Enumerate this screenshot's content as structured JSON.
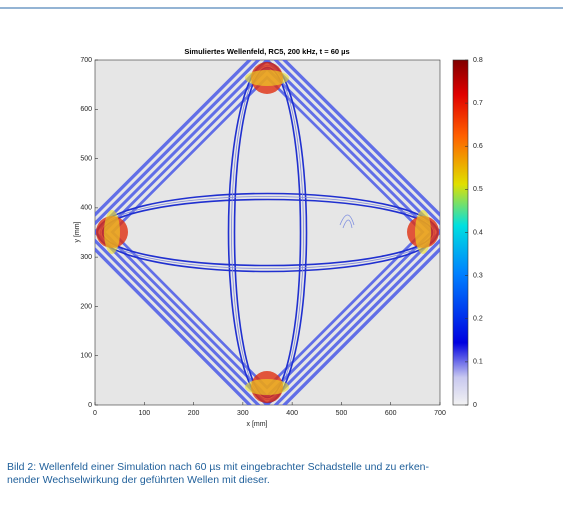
{
  "figure": {
    "title": "Simuliertes Wellenfeld, RC5, 200 kHz, t = 60 µs",
    "xlabel": "x [mm]",
    "ylabel": "y [mm]",
    "xlim": [
      0,
      700
    ],
    "ylim": [
      0,
      700
    ],
    "xticks": [
      0,
      100,
      200,
      300,
      400,
      500,
      600,
      700
    ],
    "yticks": [
      0,
      100,
      200,
      300,
      400,
      500,
      600,
      700
    ],
    "colorbar": {
      "lim": [
        0,
        0.8
      ],
      "ticks": [
        0,
        0.1,
        0.2,
        0.3,
        0.4,
        0.5,
        0.6,
        0.7,
        0.8
      ]
    }
  },
  "caption": [
    "Bild 2: Wellenfeld einer Simulation nach 60 µs mit eingebrachter Schadstelle und zu erken-",
    "nender Wechselwirkung der geführten Wellen mit dieser."
  ]
}
